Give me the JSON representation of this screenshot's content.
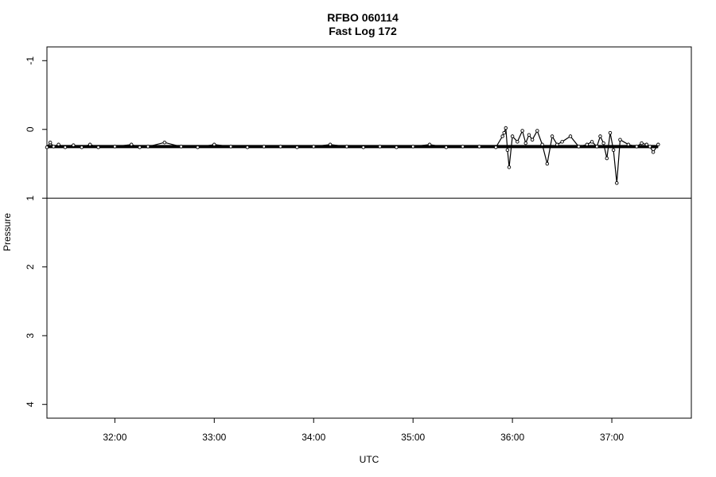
{
  "chart_data": {
    "type": "line",
    "title": "RFBO 060114",
    "subtitle": "Fast Log 172",
    "xlabel": "UTC",
    "ylabel": "Pressure",
    "x_ticks": [
      "32:00",
      "33:00",
      "34:00",
      "35:00",
      "36:00",
      "37:00"
    ],
    "y_ticks": [
      "-1",
      "0",
      "1",
      "2",
      "3",
      "4"
    ],
    "xlim": [
      "31:19",
      "37:48"
    ],
    "ylim": [
      -1.2,
      4.2
    ],
    "y_inverted": true,
    "grid": false,
    "reference_line": {
      "y": 1
    },
    "series_color": "#000000",
    "series": [
      {
        "points_note": "x in mm:ss UTC, y in pressure units",
        "x": [
          "31:19",
          "31:21",
          "31:23",
          "31:26",
          "31:30",
          "31:35",
          "31:40",
          "31:45",
          "31:50",
          "32:00",
          "32:10",
          "32:15",
          "32:20",
          "32:30",
          "32:40",
          "32:50",
          "33:00",
          "33:10",
          "33:20",
          "33:30",
          "33:40",
          "33:50",
          "34:00",
          "34:10",
          "34:20",
          "34:30",
          "34:40",
          "34:50",
          "35:00",
          "35:10",
          "35:20",
          "35:30",
          "35:40",
          "35:50",
          "35:54",
          "35:55",
          "35:56",
          "35:57",
          "35:58",
          "36:00",
          "36:03",
          "36:06",
          "36:08",
          "36:10",
          "36:12",
          "36:15",
          "36:18",
          "36:21",
          "36:24",
          "36:27",
          "36:30",
          "36:35",
          "36:40",
          "36:45",
          "36:48",
          "36:51",
          "36:53",
          "36:55",
          "36:57",
          "36:59",
          "37:01",
          "37:03",
          "37:05",
          "37:10",
          "37:15",
          "37:18",
          "37:21",
          "37:23",
          "37:25",
          "37:28"
        ],
        "y": [
          0.26,
          0.19,
          0.25,
          0.22,
          0.26,
          0.23,
          0.26,
          0.22,
          0.26,
          0.25,
          0.22,
          0.26,
          0.25,
          0.19,
          0.25,
          0.26,
          0.22,
          0.25,
          0.26,
          0.25,
          0.25,
          0.26,
          0.25,
          0.22,
          0.25,
          0.26,
          0.25,
          0.26,
          0.25,
          0.22,
          0.26,
          0.25,
          0.25,
          0.26,
          0.1,
          0.05,
          -0.02,
          0.3,
          0.55,
          0.1,
          0.18,
          0.02,
          0.2,
          0.08,
          0.15,
          0.02,
          0.22,
          0.5,
          0.1,
          0.22,
          0.18,
          0.1,
          0.25,
          0.22,
          0.18,
          0.25,
          0.1,
          0.2,
          0.42,
          0.05,
          0.3,
          0.78,
          0.15,
          0.22,
          0.25,
          0.2,
          0.22,
          0.25,
          0.33,
          0.22
        ]
      }
    ]
  }
}
